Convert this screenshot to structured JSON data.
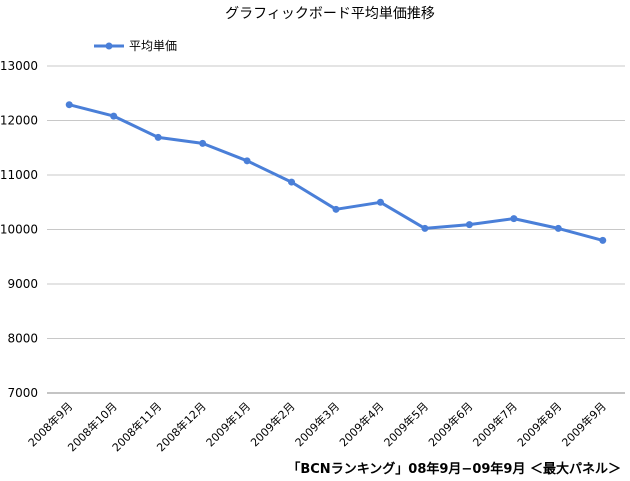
{
  "chart_data": {
    "type": "line",
    "title": "グラフィックボード平均単価推移",
    "categories": [
      "2008年9月",
      "2008年10月",
      "2008年11月",
      "2008年12月",
      "2009年1月",
      "2009年2月",
      "2009年3月",
      "2009年4月",
      "2009年5月",
      "2009年6月",
      "2009年7月",
      "2009年8月",
      "2009年9月"
    ],
    "series": [
      {
        "name": "平均単価",
        "values": [
          12290,
          12080,
          11690,
          11580,
          11260,
          10870,
          10370,
          10500,
          10020,
          10090,
          10200,
          10020,
          9800
        ]
      }
    ],
    "yticks": [
      "13000",
      "12000",
      "11000",
      "10000",
      "9000",
      "8000",
      "7000"
    ],
    "ylim": [
      7000,
      13000
    ],
    "grid": true,
    "legend": "top-left",
    "line_color": "#4a7fd8",
    "footer": "「BCNランキング」08年9月−09年9月 ＜最大パネル＞"
  }
}
